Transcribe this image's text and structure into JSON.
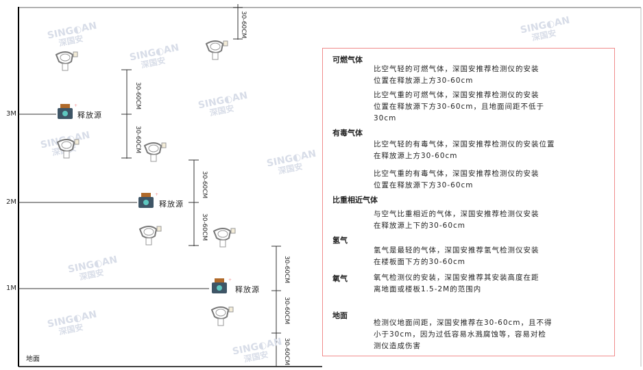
{
  "watermark": {
    "brand": "SINGOAN",
    "cn": "深国安"
  },
  "levels": [
    "3M",
    "2M",
    "1M"
  ],
  "floor_label": "地面",
  "source_label": "释放源",
  "dimension_label": "30-60CM",
  "panel": {
    "sections": [
      {
        "heading": "可燃气体",
        "paragraphs": [
          "比空气轻的可燃气体，深国安推荐检测仪的安装\n位置在释放源上方30-60cm",
          "比空气重的可燃气体，深国安推荐检测仪的安装\n位置在释放源下方30-60cm，且地面间距不低于\n30cm"
        ]
      },
      {
        "heading": "有毒气体",
        "paragraphs": [
          "比空气轻的有毒气体，深国安推荐检测仪的安装位置\n在释放源上方30-60cm",
          "比空气重的有毒气体，深国安推荐检测仪的安装\n位置在释放源下方30-60cm"
        ]
      },
      {
        "heading": "比重相近气体",
        "paragraphs": [
          "与空气比重相近的气体，深国安推荐检测仪安装\n在释放源上下的30-60cm"
        ]
      },
      {
        "heading": "氢气",
        "paragraphs": [
          "氢气是最轻的气体，深国安推荐氢气检测仪安装\n在楼板面下方的30-60cm"
        ]
      },
      {
        "heading": "氧气",
        "paragraphs": [
          "氧气检测仪的安装，深国安推荐其安装高度在距\n离地面或楼板1.5-2M的范围内"
        ]
      },
      {
        "heading": "地面",
        "paragraphs": [
          "检测仪地面间距，深国安推荐在30-60cm，且不得\n小于30cm，因为过低容易水溅腐蚀等，容易对检\n测仪造成伤害"
        ]
      }
    ]
  },
  "colors": {
    "panel_border": "#f08a8a",
    "source_body": "#3e5566",
    "source_icon": "#5ec8c0",
    "source_cap": "#b06a2a"
  }
}
